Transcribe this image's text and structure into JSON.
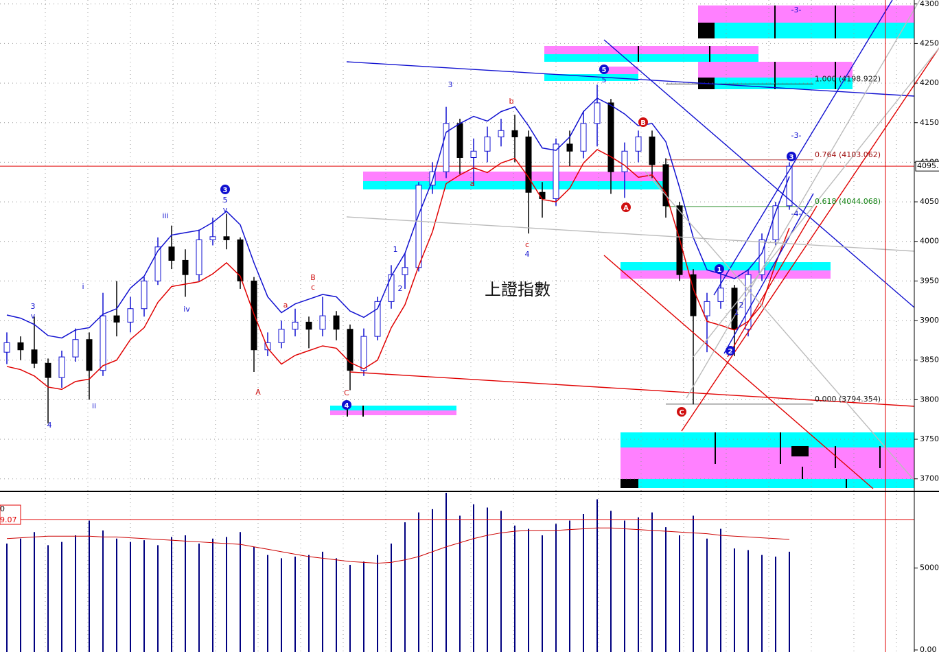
{
  "chart_data": {
    "type": "candlestick",
    "title": "上證指數",
    "ylim": [
      3685,
      4305
    ],
    "yticks": [
      3700,
      3750,
      3800,
      3850,
      3900,
      3950,
      4000,
      4050,
      4100,
      4150,
      4200,
      4250,
      4300
    ],
    "grid": true,
    "up_color": "#1010d0",
    "down_color": "#000000",
    "open": [
      3860,
      3872,
      3863,
      3846,
      3828,
      3854,
      3876,
      3837,
      3906,
      3898,
      3915,
      3950,
      3993,
      3976,
      3958,
      4002,
      4006,
      4002,
      3950,
      3863,
      3872,
      3889,
      3898,
      3889,
      3906,
      3889,
      3837,
      3880,
      3924,
      3958,
      3967,
      4071,
      4088,
      4149,
      4106,
      4114,
      4132,
      4140,
      4132,
      4062,
      4054,
      4123,
      4114,
      4149,
      4175,
      4088,
      4114,
      4132,
      4097,
      4045,
      3958,
      3906,
      3924,
      3941,
      3889,
      3958,
      4002,
      4045
    ],
    "high": [
      3885,
      3880,
      3905,
      3852,
      3862,
      3890,
      3885,
      3935,
      3950,
      3930,
      3955,
      4005,
      4020,
      3990,
      4015,
      4030,
      4035,
      4005,
      3955,
      3885,
      3900,
      3915,
      3905,
      3930,
      3912,
      3895,
      3890,
      3930,
      3970,
      3985,
      4075,
      4100,
      4170,
      4155,
      4130,
      4145,
      4155,
      4160,
      4140,
      4075,
      4130,
      4140,
      4165,
      4198,
      4180,
      4125,
      4140,
      4140,
      4105,
      4050,
      3965,
      3935,
      3960,
      3945,
      3965,
      4010,
      4050,
      4100
    ],
    "low": [
      3845,
      3850,
      3840,
      3770,
      3815,
      3848,
      3800,
      3830,
      3880,
      3885,
      3905,
      3945,
      3965,
      3930,
      3950,
      3995,
      3990,
      3940,
      3835,
      3855,
      3865,
      3880,
      3865,
      3880,
      3875,
      3812,
      3830,
      3875,
      3915,
      3940,
      3962,
      4060,
      4080,
      4085,
      4070,
      4100,
      4120,
      4100,
      4010,
      4030,
      4045,
      4095,
      4105,
      4120,
      4060,
      4055,
      4100,
      4080,
      4030,
      3950,
      3794,
      3860,
      3915,
      3855,
      3880,
      3950,
      3995,
      4040
    ],
    "close": [
      3872,
      3863,
      3846,
      3828,
      3854,
      3876,
      3837,
      3906,
      3898,
      3915,
      3950,
      3993,
      3976,
      3958,
      4002,
      4006,
      4002,
      3950,
      3863,
      3872,
      3889,
      3898,
      3889,
      3906,
      3889,
      3837,
      3880,
      3924,
      3958,
      3967,
      4071,
      4088,
      4149,
      4106,
      4114,
      4132,
      4140,
      4132,
      4062,
      4054,
      4123,
      4114,
      4149,
      4175,
      4088,
      4114,
      4132,
      4097,
      4045,
      3958,
      3906,
      3924,
      3941,
      3889,
      3958,
      4002,
      4045,
      4095
    ],
    "overlays": [
      {
        "color": "#1010d0",
        "values": [
          3907,
          3903,
          3895,
          3881,
          3878,
          3888,
          3891,
          3908,
          3915,
          3941,
          3956,
          3988,
          4008,
          4011,
          4014,
          4024,
          4038,
          4021,
          3973,
          3930,
          3910,
          3921,
          3927,
          3933,
          3930,
          3912,
          3904,
          3915,
          3956,
          3985,
          4034,
          4077,
          4138,
          4149,
          4158,
          4152,
          4164,
          4170,
          4146,
          4118,
          4115,
          4132,
          4164,
          4181,
          4172,
          4161,
          4146,
          4149,
          4126,
          4068,
          4005,
          3964,
          3959,
          3953,
          3964,
          3985,
          4037,
          4082
        ]
      },
      {
        "color": "#e00000",
        "values": [
          3842,
          3838,
          3830,
          3816,
          3813,
          3823,
          3826,
          3843,
          3850,
          3876,
          3891,
          3923,
          3943,
          3946,
          3949,
          3959,
          3973,
          3956,
          3908,
          3865,
          3845,
          3856,
          3862,
          3868,
          3865,
          3847,
          3839,
          3850,
          3891,
          3920,
          3969,
          4012,
          4073,
          4084,
          4093,
          4087,
          4099,
          4105,
          4081,
          4053,
          4050,
          4067,
          4099,
          4116,
          4107,
          4096,
          4081,
          4084,
          4061,
          4003,
          3940,
          3899,
          3894,
          3888,
          3899,
          3920,
          3972,
          4017
        ]
      }
    ],
    "last_price": {
      "value": 4095,
      "label": "4095."
    },
    "fib_levels": [
      {
        "value": 4198.922,
        "label": "1.000 (4198.922)",
        "color": "#202020"
      },
      {
        "value": 4103.062,
        "label": "0.764 (4103.062)",
        "color": "#a01010"
      },
      {
        "value": 4044.068,
        "label": "0.618 (4044.068)",
        "color": "#108010"
      },
      {
        "value": 3794.354,
        "label": "0.000 (3794.354)",
        "color": "#202020"
      }
    ],
    "annotations": [
      {
        "text": "3",
        "color": "#1010d0"
      },
      {
        "text": "v",
        "color": "#1010d0"
      },
      {
        "text": "4",
        "color": "#1010d0"
      },
      {
        "text": "i",
        "color": "#1010d0"
      },
      {
        "text": "ii",
        "color": "#1010d0"
      },
      {
        "text": "iii",
        "color": "#1010d0"
      },
      {
        "text": "iv",
        "color": "#1010d0"
      },
      {
        "text": "3",
        "color": "#1010d0",
        "circled": true
      },
      {
        "text": "5",
        "color": "#1010d0"
      },
      {
        "text": "v",
        "color": "#1010d0"
      },
      {
        "text": "A",
        "color": "#d01010"
      },
      {
        "text": "a",
        "color": "#d01010"
      },
      {
        "text": "B",
        "color": "#d01010"
      },
      {
        "text": "c",
        "color": "#d01010"
      },
      {
        "text": "C",
        "color": "#d01010"
      },
      {
        "text": "4",
        "color": "#1010d0",
        "circled": true
      },
      {
        "text": "1",
        "color": "#1010d0"
      },
      {
        "text": "2",
        "color": "#1010d0"
      },
      {
        "text": "3",
        "color": "#1010d0"
      },
      {
        "text": "a",
        "color": "#d01010"
      },
      {
        "text": "b",
        "color": "#d01010"
      },
      {
        "text": "c",
        "color": "#d01010"
      },
      {
        "text": "4",
        "color": "#1010d0"
      },
      {
        "text": "5",
        "color": "#1010d0",
        "circled": true
      },
      {
        "text": "5",
        "color": "#1010d0"
      },
      {
        "text": "B",
        "color": "#d01010",
        "circled": true
      },
      {
        "text": "A",
        "color": "#d01010",
        "circled": true
      },
      {
        "text": "C",
        "color": "#d01010",
        "circled": true
      },
      {
        "text": "1",
        "color": "#1010d0",
        "circled": true
      },
      {
        "text": "2",
        "color": "#1010d0",
        "circled": true
      },
      {
        "text": "1",
        "color": "#1010d0"
      },
      {
        "text": "2",
        "color": "#1010d0"
      },
      {
        "text": "3",
        "color": "#1010d0",
        "circled": true
      },
      {
        "text": "-3-",
        "color": "#1010d0"
      },
      {
        "text": "-3-",
        "color": "#1010d0"
      },
      {
        "text": "-4-",
        "color": "#1010d0"
      }
    ],
    "volume": {
      "color": "#000080",
      "ma_color": "#cc0000",
      "ylim": [
        0,
        9600
      ],
      "yticks": [
        5000,
        {
          "value": 0,
          "label": "0.00"
        }
      ],
      "labels": [
        "0",
        "9.07"
      ],
      "values": [
        6500,
        6800,
        7200,
        6400,
        6600,
        7000,
        7900,
        7300,
        6800,
        6600,
        6700,
        6400,
        6900,
        7000,
        6500,
        6800,
        6900,
        7200,
        6300,
        5800,
        5600,
        5700,
        5800,
        6000,
        5600,
        5200,
        5400,
        5800,
        6500,
        7800,
        8400,
        8600,
        9600,
        8200,
        8900,
        8700,
        8500,
        7600,
        7400,
        7000,
        7700,
        7900,
        8300,
        9200,
        8500,
        7900,
        8100,
        8400,
        7500,
        7000,
        8200,
        6800,
        7400,
        6200,
        6100,
        5800,
        5700,
        6000
      ],
      "ma": [
        6800,
        6850,
        6900,
        6950,
        6950,
        6950,
        6950,
        6900,
        6900,
        6850,
        6800,
        6750,
        6700,
        6650,
        6600,
        6550,
        6500,
        6450,
        6300,
        6150,
        6000,
        5850,
        5700,
        5600,
        5500,
        5400,
        5350,
        5300,
        5350,
        5500,
        5700,
        6000,
        6300,
        6550,
        6800,
        7000,
        7150,
        7250,
        7300,
        7300,
        7300,
        7350,
        7400,
        7450,
        7450,
        7400,
        7350,
        7300,
        7250,
        7200,
        7150,
        7100,
        7000,
        6950,
        6900,
        6850,
        6800,
        6750
      ]
    }
  }
}
